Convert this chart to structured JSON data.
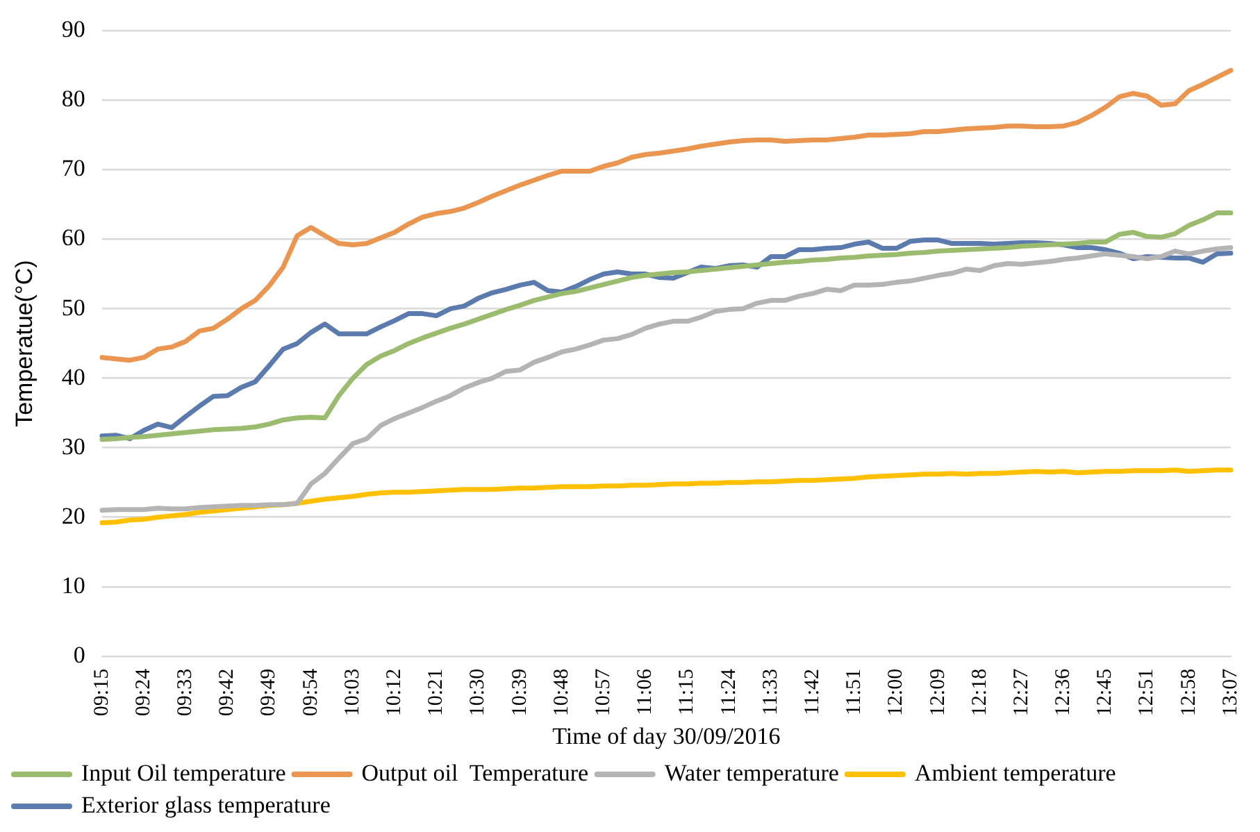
{
  "chart_data": {
    "type": "line",
    "xlabel": "Time of day 30/09/2016",
    "ylabel": "Temperatue(°C)",
    "categories": [
      "09:15",
      null,
      null,
      "09:24",
      null,
      null,
      "09:33",
      null,
      null,
      "09:42",
      null,
      null,
      "09:49",
      null,
      null,
      "09:54",
      null,
      null,
      "10:03",
      null,
      null,
      "10:12",
      null,
      null,
      "10:21",
      null,
      null,
      "10:30",
      null,
      null,
      "10:39",
      null,
      null,
      "10:48",
      null,
      null,
      "10:57",
      null,
      null,
      "11:06",
      null,
      null,
      "11:15",
      null,
      null,
      "11:24",
      null,
      null,
      "11:33",
      null,
      null,
      "11:42",
      null,
      null,
      "11:51",
      null,
      null,
      "12:00",
      null,
      null,
      "12:09",
      null,
      null,
      "12:18",
      null,
      null,
      "12:27",
      null,
      null,
      "12:36",
      null,
      null,
      "12:45",
      null,
      null,
      "12:51",
      null,
      null,
      "12:58",
      null,
      null,
      "13:07"
    ],
    "series": [
      {
        "name": "Input Oil temperature",
        "color": "#9bbb6e",
        "values": [
          31.2,
          31.3,
          31.5,
          31.6,
          31.8,
          32,
          32.2,
          32.4,
          32.6,
          32.7,
          32.8,
          33,
          33.4,
          34,
          34.3,
          34.4,
          34.3,
          37.5,
          40,
          42,
          43.2,
          44,
          45,
          45.8,
          46.5,
          47.2,
          47.8,
          48.5,
          49.2,
          49.9,
          50.5,
          51.2,
          51.7,
          52.2,
          52.5,
          53,
          53.5,
          54,
          54.5,
          54.8,
          55,
          55.2,
          55.3,
          55.5,
          55.7,
          55.9,
          56.1,
          56.3,
          56.5,
          56.7,
          56.8,
          57,
          57.1,
          57.3,
          57.4,
          57.6,
          57.7,
          57.8,
          58,
          58.1,
          58.3,
          58.4,
          58.5,
          58.6,
          58.7,
          58.8,
          59,
          59.1,
          59.2,
          59.3,
          59.4,
          59.6,
          59.6,
          60.7,
          61,
          60.4,
          60.3,
          60.8,
          62,
          62.8,
          63.8,
          63.8
        ]
      },
      {
        "name": "Output oil  Temperature",
        "color": "#eb9650",
        "values": [
          43,
          42.8,
          42.6,
          43,
          44.2,
          44.5,
          45.3,
          46.8,
          47.2,
          48.5,
          50,
          51.2,
          53.3,
          56,
          60.5,
          61.7,
          60.5,
          59.4,
          59.2,
          59.4,
          60.2,
          61,
          62.2,
          63.2,
          63.7,
          64,
          64.5,
          65.3,
          66.2,
          67,
          67.8,
          68.5,
          69.2,
          69.8,
          69.8,
          69.8,
          70.5,
          71,
          71.8,
          72.2,
          72.4,
          72.7,
          73,
          73.4,
          73.7,
          74,
          74.2,
          74.3,
          74.3,
          74.1,
          74.2,
          74.3,
          74.3,
          74.5,
          74.7,
          75,
          75,
          75.1,
          75.2,
          75.5,
          75.5,
          75.7,
          75.9,
          76,
          76.1,
          76.3,
          76.3,
          76.2,
          76.2,
          76.3,
          76.8,
          77.8,
          79,
          80.5,
          81,
          80.6,
          79.3,
          79.5,
          81.4,
          82.3,
          83.3,
          84.3
        ]
      },
      {
        "name": "Water temperature",
        "color": "#b4b4b4",
        "values": [
          21,
          21.1,
          21.1,
          21.1,
          21.3,
          21.2,
          21.2,
          21.4,
          21.5,
          21.6,
          21.7,
          21.7,
          21.8,
          21.8,
          22,
          24.8,
          26.3,
          28.5,
          30.6,
          31.3,
          33.2,
          34.2,
          35,
          35.8,
          36.7,
          37.5,
          38.6,
          39.4,
          40,
          41,
          41.2,
          42.3,
          43,
          43.8,
          44.2,
          44.8,
          45.5,
          45.7,
          46.3,
          47.2,
          47.8,
          48.2,
          48.2,
          48.8,
          49.6,
          49.9,
          50,
          50.8,
          51.2,
          51.2,
          51.8,
          52.2,
          52.8,
          52.6,
          53.4,
          53.4,
          53.5,
          53.8,
          54,
          54.4,
          54.8,
          55.1,
          55.7,
          55.5,
          56.2,
          56.5,
          56.4,
          56.6,
          56.8,
          57.1,
          57.3,
          57.6,
          57.9,
          57.7,
          57.5,
          57.2,
          57.5,
          58.3,
          57.9,
          58.3,
          58.6,
          58.8
        ]
      },
      {
        "name": "Ambient temperature",
        "color": "#ffc000",
        "values": [
          19.2,
          19.3,
          19.6,
          19.7,
          20,
          20.2,
          20.4,
          20.7,
          20.9,
          21.1,
          21.3,
          21.5,
          21.7,
          21.8,
          22,
          22.3,
          22.6,
          22.8,
          23,
          23.3,
          23.5,
          23.6,
          23.6,
          23.7,
          23.8,
          23.9,
          24,
          24,
          24,
          24.1,
          24.2,
          24.2,
          24.3,
          24.4,
          24.4,
          24.4,
          24.5,
          24.5,
          24.6,
          24.6,
          24.7,
          24.8,
          24.8,
          24.9,
          24.9,
          25,
          25,
          25.1,
          25.1,
          25.2,
          25.3,
          25.3,
          25.4,
          25.5,
          25.6,
          25.8,
          25.9,
          26,
          26.1,
          26.2,
          26.2,
          26.3,
          26.2,
          26.3,
          26.3,
          26.4,
          26.5,
          26.6,
          26.5,
          26.6,
          26.4,
          26.5,
          26.6,
          26.6,
          26.7,
          26.7,
          26.7,
          26.8,
          26.6,
          26.7,
          26.8,
          26.8
        ]
      },
      {
        "name": "Exterior glass temperature",
        "color": "#5b7bae",
        "values": [
          31.7,
          31.8,
          31.3,
          32.5,
          33.4,
          32.9,
          34.5,
          36,
          37.4,
          37.5,
          38.7,
          39.5,
          41.8,
          44.2,
          45,
          46.6,
          47.8,
          46.4,
          46.4,
          46.4,
          47.4,
          48.3,
          49.3,
          49.3,
          49,
          50,
          50.4,
          51.5,
          52.3,
          52.8,
          53.4,
          53.8,
          52.6,
          52.4,
          53.2,
          54.2,
          55,
          55.3,
          55,
          55,
          54.5,
          54.4,
          55.2,
          56,
          55.8,
          56.2,
          56.3,
          56,
          57.5,
          57.5,
          58.5,
          58.5,
          58.7,
          58.8,
          59.3,
          59.6,
          58.7,
          58.7,
          59.7,
          59.9,
          59.9,
          59.4,
          59.4,
          59.4,
          59.3,
          59.4,
          59.5,
          59.5,
          59.4,
          59.2,
          58.8,
          58.8,
          58.5,
          58,
          57.2,
          57.5,
          57.4,
          57.3,
          57.3,
          56.7,
          57.9,
          58
        ]
      }
    ],
    "ylim": [
      0,
      90
    ],
    "yticks": [
      0,
      10,
      20,
      30,
      40,
      50,
      60,
      70,
      80,
      90
    ],
    "grid": "y",
    "legend": "bottom",
    "marker": "none",
    "line_style": "solid"
  }
}
